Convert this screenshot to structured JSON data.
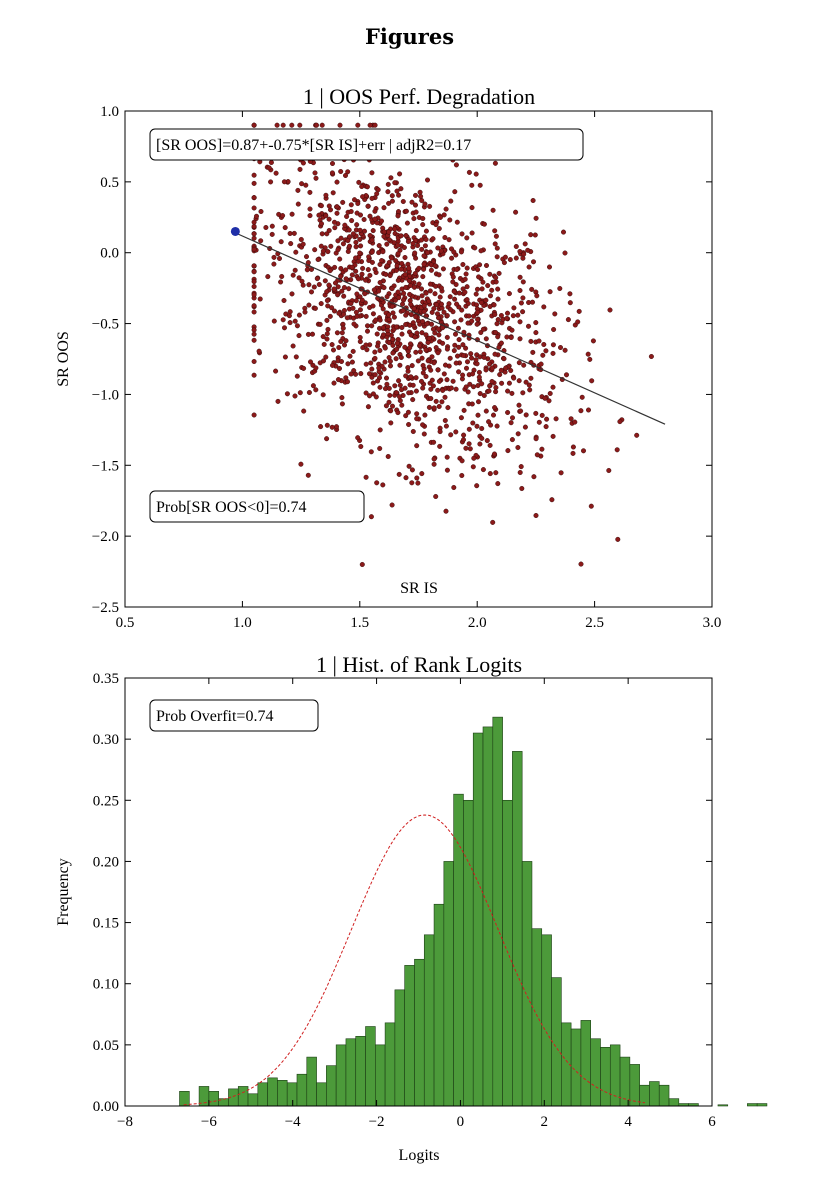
{
  "page": {
    "heading": "Figures"
  },
  "chart_data": [
    {
      "type": "scatter",
      "title": "1 | OOS Perf. Degradation",
      "xlabel": "SR IS",
      "ylabel": "SR OOS",
      "xlim": [
        0.5,
        3.0
      ],
      "ylim": [
        -2.5,
        1.0
      ],
      "xticks": [
        "0.5",
        "1.0",
        "1.5",
        "2.0",
        "2.5",
        "3.0"
      ],
      "yticks": [
        "1.0",
        "0.5",
        "0.0",
        "−0.5",
        "−1.0",
        "−1.5",
        "−2.0",
        "−2.5"
      ],
      "grid": false,
      "annotations": [
        "[SR OOS]=0.87+-0.75*[SR IS]+err | adjR2=0.17",
        "Prob[SR OOS<0]=0.74"
      ],
      "regression_line": {
        "x": [
          0.97,
          2.8
        ],
        "y": [
          0.14,
          -1.21
        ]
      },
      "highlight_point": {
        "x": 0.97,
        "y": 0.15
      },
      "series": [
        {
          "n_points": 1500,
          "x_mean": 1.7,
          "x_sd": 0.33,
          "x_range": [
            1.05,
            2.8
          ],
          "y_mean": -0.4,
          "y_sd": 0.55,
          "y_range": [
            -2.2,
            0.9
          ],
          "corr": -0.42
        }
      ],
      "colors": {
        "points": "#8b1a1a",
        "point_edge": "#2a0505",
        "line": "#333333",
        "highlight": "#1f2fa8"
      }
    },
    {
      "type": "bar",
      "title": "1 | Hist. of Rank Logits",
      "xlabel": "Logits",
      "ylabel": "Frequency",
      "xlim": [
        -8,
        6
      ],
      "ylim": [
        0,
        0.35
      ],
      "xticks": [
        "−8",
        "−6",
        "−4",
        "−2",
        "0",
        "2",
        "4",
        "6"
      ],
      "yticks": [
        "0.35",
        "0.30",
        "0.25",
        "0.20",
        "0.15",
        "0.10",
        "0.05",
        "0.00"
      ],
      "grid": false,
      "annotations": [
        "Prob Overfit=0.74"
      ],
      "bins_start": -6.7,
      "bin_width": 0.2335,
      "values": [
        0.012,
        0.0,
        0.016,
        0.012,
        0.006,
        0.014,
        0.016,
        0.01,
        0.019,
        0.023,
        0.021,
        0.019,
        0.026,
        0.04,
        0.019,
        0.033,
        0.05,
        0.055,
        0.057,
        0.065,
        0.05,
        0.068,
        0.095,
        0.115,
        0.12,
        0.14,
        0.165,
        0.2,
        0.255,
        0.25,
        0.305,
        0.31,
        0.318,
        0.25,
        0.29,
        0.2,
        0.145,
        0.14,
        0.105,
        0.068,
        0.063,
        0.07,
        0.055,
        0.048,
        0.05,
        0.04,
        0.034,
        0.017,
        0.02,
        0.017,
        0.006,
        0.002,
        0.002,
        0.0,
        0.0,
        0.001,
        0.0,
        0.0,
        0.002,
        0.002
      ],
      "fit_curve": {
        "type": "normal",
        "mean": -0.85,
        "sd": 1.75,
        "peak": 0.238
      },
      "colors": {
        "bars": "#4c9a3a",
        "bar_edge": "#1b3d14",
        "curve": "#d02020"
      }
    }
  ]
}
